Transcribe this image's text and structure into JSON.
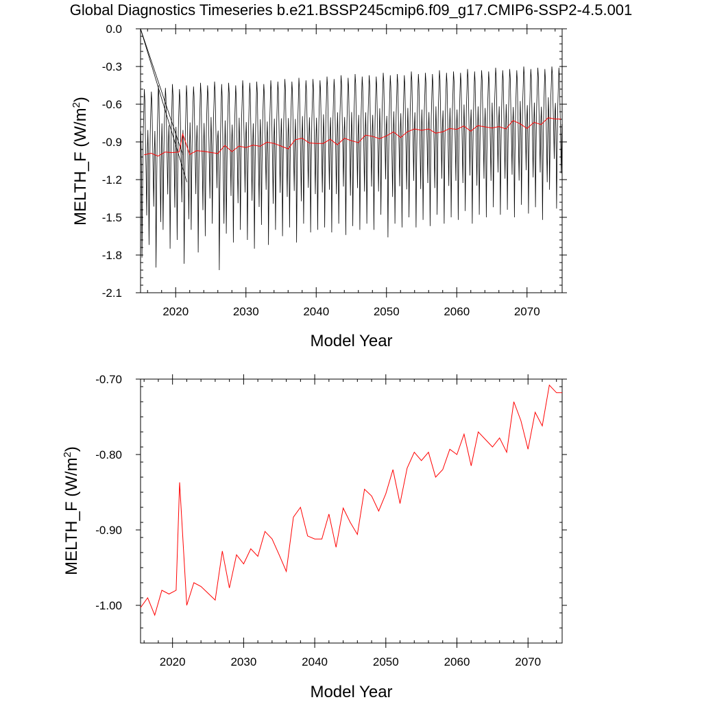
{
  "title": "Global Diagnostics Timeseries b.e21.BSSP245cmip6.f09_g17.CMIP6-SSP2-4.5.001",
  "colors": {
    "monthly": "#000000",
    "annual": "#ff0000",
    "axis": "#000000"
  },
  "chart_data": [
    {
      "type": "line",
      "xlabel": "Model Year",
      "ylabel": "MELTH_F (W/m",
      "ylabel_sup": "2",
      "ylabel_close": ")",
      "xlim": [
        2015,
        2075
      ],
      "ylim": [
        -2.1,
        0.0
      ],
      "xticks": [
        2020,
        2030,
        2040,
        2050,
        2060,
        2070
      ],
      "yticks": [
        0.0,
        -0.3,
        -0.6,
        -0.9,
        -1.2,
        -1.5,
        -1.8,
        -2.1
      ],
      "ytick_labels": [
        "0.0",
        "-0.3",
        "-0.6",
        "-0.9",
        "-1.2",
        "-1.5",
        "-1.8",
        "-2.1"
      ],
      "series": [
        {
          "kind": "monthly",
          "color": "#000000",
          "x_start": 2015.04,
          "x_step": 0.08333,
          "spurious_start": [
            [
              2015.0,
              0.0
            ],
            [
              2021.6,
              -1.22
            ],
            [
              2015.0,
              0.0
            ],
            [
              2021.0,
              -1.0
            ]
          ],
          "monthly_min": [
            -1.82,
            -1.72,
            -1.9,
            -1.6,
            -1.75,
            -1.68,
            -1.87,
            -1.6,
            -1.78,
            -1.65,
            -1.55,
            -1.92,
            -1.63,
            -1.7,
            -1.6,
            -1.68,
            -1.75,
            -1.56,
            -1.72,
            -1.6,
            -1.65,
            -1.58,
            -1.7,
            -1.55,
            -1.62,
            -1.6,
            -1.58,
            -1.62,
            -1.55,
            -1.64,
            -1.57,
            -1.6,
            -1.55,
            -1.6,
            -1.48,
            -1.66,
            -1.55,
            -1.58,
            -1.5,
            -1.58,
            -1.52,
            -1.57,
            -1.48,
            -1.55,
            -1.5,
            -1.52,
            -1.45,
            -1.55,
            -1.48,
            -1.5,
            -1.42,
            -1.48,
            -1.44,
            -1.5,
            -1.4,
            -1.47,
            -1.42,
            -1.52,
            -1.28,
            -1.43
          ],
          "monthly_max": [
            -0.48,
            -0.5,
            -0.45,
            -0.47,
            -0.44,
            -0.48,
            -0.45,
            -0.46,
            -0.43,
            -0.45,
            -0.42,
            -0.44,
            -0.43,
            -0.45,
            -0.41,
            -0.43,
            -0.42,
            -0.44,
            -0.41,
            -0.42,
            -0.4,
            -0.42,
            -0.39,
            -0.41,
            -0.4,
            -0.41,
            -0.38,
            -0.4,
            -0.37,
            -0.39,
            -0.36,
            -0.38,
            -0.37,
            -0.38,
            -0.35,
            -0.37,
            -0.36,
            -0.37,
            -0.34,
            -0.36,
            -0.35,
            -0.36,
            -0.33,
            -0.35,
            -0.34,
            -0.35,
            -0.32,
            -0.34,
            -0.33,
            -0.34,
            -0.31,
            -0.33,
            -0.32,
            -0.33,
            -0.3,
            -0.32,
            -0.31,
            -0.32,
            -0.3,
            -0.31
          ]
        },
        {
          "kind": "annual",
          "color": "#ff0000",
          "x": [
            2015.5,
            2016.5,
            2017.5,
            2018.5,
            2019.5,
            2020.5,
            2021.0,
            2022.0,
            2023.0,
            2024.0,
            2025.0,
            2026.0,
            2027.0,
            2028.0,
            2029.0,
            2030.0,
            2031.0,
            2032.0,
            2033.0,
            2034.0,
            2035.0,
            2036.0,
            2037.0,
            2038.0,
            2039.0,
            2040.0,
            2041.0,
            2042.0,
            2043.0,
            2044.0,
            2045.0,
            2046.0,
            2047.0,
            2048.0,
            2049.0,
            2050.0,
            2051.0,
            2052.0,
            2053.0,
            2054.0,
            2055.0,
            2056.0,
            2057.0,
            2058.0,
            2059.0,
            2060.0,
            2061.0,
            2062.0,
            2063.0,
            2064.0,
            2065.0,
            2066.0,
            2067.0,
            2068.0,
            2069.0,
            2070.0,
            2071.0,
            2072.0,
            2073.0,
            2074.0,
            2074.8
          ],
          "y": [
            -1.003,
            -0.99,
            -1.013,
            -0.98,
            -0.985,
            -0.98,
            -0.837,
            -1.0,
            -0.97,
            -0.975,
            -0.984,
            -0.993,
            -0.928,
            -0.977,
            -0.933,
            -0.945,
            -0.925,
            -0.935,
            -0.902,
            -0.912,
            -0.933,
            -0.955,
            -0.883,
            -0.87,
            -0.908,
            -0.912,
            -0.912,
            -0.879,
            -0.923,
            -0.871,
            -0.89,
            -0.906,
            -0.846,
            -0.855,
            -0.875,
            -0.852,
            -0.82,
            -0.865,
            -0.818,
            -0.797,
            -0.808,
            -0.797,
            -0.83,
            -0.82,
            -0.793,
            -0.8,
            -0.773,
            -0.815,
            -0.77,
            -0.78,
            -0.79,
            -0.778,
            -0.797,
            -0.73,
            -0.755,
            -0.793,
            -0.744,
            -0.762,
            -0.708,
            -0.718,
            -0.718
          ]
        }
      ]
    },
    {
      "type": "line",
      "xlabel": "Model Year",
      "ylabel": "MELTH_F (W/m",
      "ylabel_sup": "2",
      "ylabel_close": ")",
      "xlim": [
        2015.5,
        2074.8
      ],
      "ylim": [
        -1.05,
        -0.7
      ],
      "xticks": [
        2020,
        2030,
        2040,
        2050,
        2060,
        2070
      ],
      "yticks": [
        -0.7,
        -0.8,
        -0.9,
        -1.0
      ],
      "ytick_labels": [
        "-0.70",
        "-0.80",
        "-0.90",
        "-1.00"
      ],
      "series": [
        {
          "kind": "annual",
          "color": "#ff0000",
          "x": [
            2015.5,
            2016.5,
            2017.5,
            2018.5,
            2019.5,
            2020.5,
            2021.0,
            2022.0,
            2023.0,
            2024.0,
            2025.0,
            2026.0,
            2027.0,
            2028.0,
            2029.0,
            2030.0,
            2031.0,
            2032.0,
            2033.0,
            2034.0,
            2035.0,
            2036.0,
            2037.0,
            2038.0,
            2039.0,
            2040.0,
            2041.0,
            2042.0,
            2043.0,
            2044.0,
            2045.0,
            2046.0,
            2047.0,
            2048.0,
            2049.0,
            2050.0,
            2051.0,
            2052.0,
            2053.0,
            2054.0,
            2055.0,
            2056.0,
            2057.0,
            2058.0,
            2059.0,
            2060.0,
            2061.0,
            2062.0,
            2063.0,
            2064.0,
            2065.0,
            2066.0,
            2067.0,
            2068.0,
            2069.0,
            2070.0,
            2071.0,
            2072.0,
            2073.0,
            2074.0,
            2074.8
          ],
          "y": [
            -1.003,
            -0.99,
            -1.013,
            -0.98,
            -0.985,
            -0.98,
            -0.837,
            -1.0,
            -0.97,
            -0.975,
            -0.984,
            -0.993,
            -0.928,
            -0.977,
            -0.933,
            -0.945,
            -0.925,
            -0.935,
            -0.902,
            -0.912,
            -0.933,
            -0.955,
            -0.883,
            -0.87,
            -0.908,
            -0.912,
            -0.912,
            -0.879,
            -0.923,
            -0.871,
            -0.89,
            -0.906,
            -0.846,
            -0.855,
            -0.875,
            -0.852,
            -0.82,
            -0.865,
            -0.818,
            -0.797,
            -0.808,
            -0.797,
            -0.83,
            -0.82,
            -0.793,
            -0.8,
            -0.773,
            -0.815,
            -0.77,
            -0.78,
            -0.79,
            -0.778,
            -0.797,
            -0.73,
            -0.755,
            -0.793,
            -0.744,
            -0.762,
            -0.708,
            -0.718,
            -0.718
          ]
        }
      ]
    }
  ]
}
